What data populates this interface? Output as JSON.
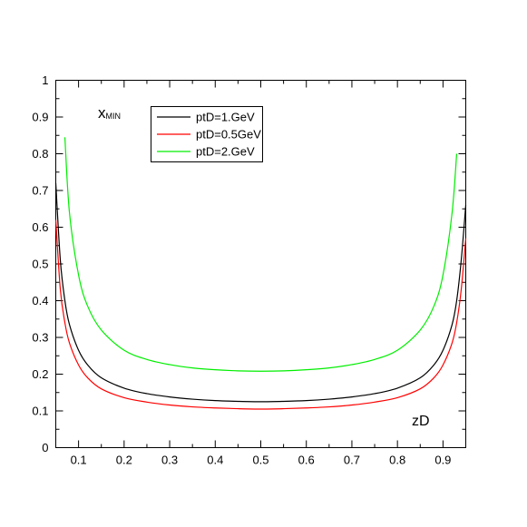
{
  "chart_data": {
    "type": "line",
    "title": "",
    "xlabel": "",
    "ylabel": "",
    "xlim": [
      0.05,
      0.95
    ],
    "ylim": [
      0,
      1
    ],
    "x_ticks": [
      0.1,
      0.2,
      0.3,
      0.4,
      0.5,
      0.6,
      0.7,
      0.8,
      0.9
    ],
    "y_ticks": [
      0,
      0.1,
      0.2,
      0.3,
      0.4,
      0.5,
      0.6,
      0.7,
      0.8,
      0.9,
      1
    ],
    "x_tick_labels": [
      "0.1",
      "0.2",
      "0.3",
      "0.4",
      "0.5",
      "0.6",
      "0.7",
      "0.8",
      "0.9"
    ],
    "y_tick_labels": [
      "0",
      "0.1",
      "0.2",
      "0.3",
      "0.4",
      "0.5",
      "0.6",
      "0.7",
      "0.8",
      "0.9",
      "1"
    ],
    "grid": false,
    "legend_position": "top-left",
    "annotations": {
      "x_main": "x",
      "x_sub": "MIN",
      "axis_label": "zD"
    },
    "series": [
      {
        "name": "ptD=1.GeV",
        "color": "#000000",
        "x": [
          0.05,
          0.06,
          0.07,
          0.08,
          0.1,
          0.12,
          0.15,
          0.2,
          0.25,
          0.3,
          0.35,
          0.4,
          0.45,
          0.5,
          0.55,
          0.6,
          0.65,
          0.7,
          0.75,
          0.8,
          0.85,
          0.88,
          0.9,
          0.92,
          0.93,
          0.94,
          0.95
        ],
        "y": [
          0.72,
          0.51,
          0.4,
          0.335,
          0.265,
          0.225,
          0.19,
          0.162,
          0.147,
          0.138,
          0.132,
          0.128,
          0.126,
          0.125,
          0.126,
          0.128,
          0.132,
          0.138,
          0.147,
          0.162,
          0.19,
          0.225,
          0.265,
          0.335,
          0.4,
          0.51,
          0.66
        ]
      },
      {
        "name": "ptD=0.5GeV",
        "color": "#ff0000",
        "x": [
          0.05,
          0.06,
          0.07,
          0.08,
          0.1,
          0.12,
          0.15,
          0.2,
          0.25,
          0.3,
          0.35,
          0.4,
          0.45,
          0.5,
          0.55,
          0.6,
          0.65,
          0.7,
          0.75,
          0.8,
          0.85,
          0.88,
          0.9,
          0.92,
          0.93,
          0.94,
          0.95
        ],
        "y": [
          0.62,
          0.43,
          0.34,
          0.285,
          0.225,
          0.19,
          0.16,
          0.136,
          0.124,
          0.116,
          0.111,
          0.108,
          0.106,
          0.105,
          0.106,
          0.108,
          0.111,
          0.116,
          0.124,
          0.136,
          0.16,
          0.19,
          0.225,
          0.285,
          0.34,
          0.43,
          0.57
        ]
      },
      {
        "name": "ptD=2.GeV",
        "color": "#00ee00",
        "x": [
          0.07,
          0.08,
          0.1,
          0.12,
          0.15,
          0.2,
          0.25,
          0.3,
          0.35,
          0.4,
          0.45,
          0.5,
          0.55,
          0.6,
          0.65,
          0.7,
          0.75,
          0.8,
          0.85,
          0.88,
          0.9,
          0.92,
          0.93
        ],
        "y": [
          0.845,
          0.64,
          0.47,
          0.385,
          0.32,
          0.265,
          0.24,
          0.226,
          0.217,
          0.212,
          0.209,
          0.208,
          0.209,
          0.212,
          0.217,
          0.226,
          0.24,
          0.265,
          0.32,
          0.385,
          0.47,
          0.64,
          0.8
        ]
      }
    ]
  }
}
